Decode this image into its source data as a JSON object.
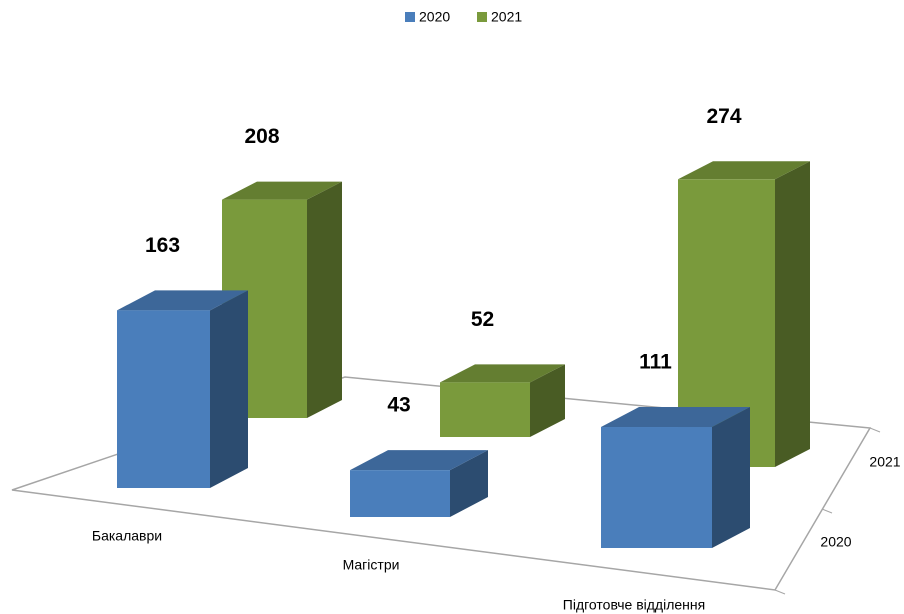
{
  "chart_data": {
    "type": "bar3d",
    "categories": [
      "Бакалаври",
      "Магістри",
      "Підготовче відділення"
    ],
    "series": [
      {
        "name": "2020",
        "color": "#4a7ebb",
        "values": [
          163,
          43,
          111
        ]
      },
      {
        "name": "2021",
        "color": "#7a9a3c",
        "values": [
          208,
          52,
          274
        ]
      }
    ],
    "legend": "top"
  }
}
